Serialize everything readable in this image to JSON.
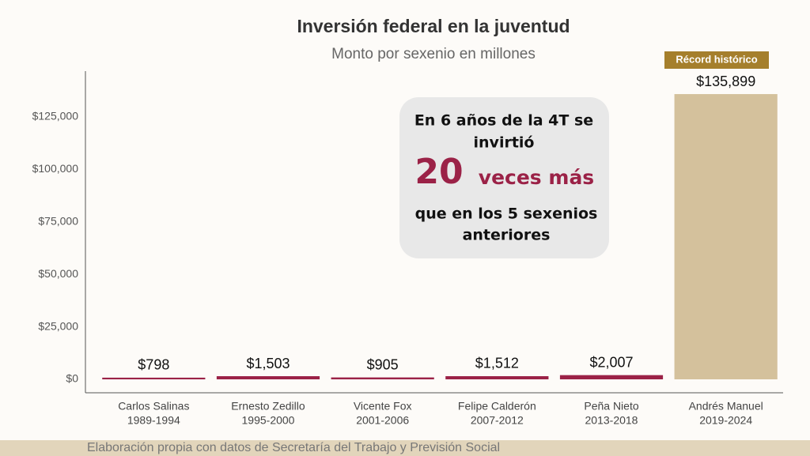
{
  "chart_data": {
    "type": "bar",
    "title": "Inversión federal en la juventud",
    "subtitle": "Monto por sexenio en millones",
    "categories": [
      [
        "Carlos Salinas",
        "1989-1994"
      ],
      [
        "Ernesto Zedillo",
        "1995-2000"
      ],
      [
        "Vicente Fox",
        "2001-2006"
      ],
      [
        "Felipe Calderón",
        "2007-2012"
      ],
      [
        "Peña Nieto",
        "2013-2018"
      ],
      [
        "Andrés Manuel",
        "2019-2024"
      ]
    ],
    "values": [
      798,
      1503,
      905,
      1512,
      2007,
      135899
    ],
    "value_labels": [
      "$798",
      "$1,503",
      "$905",
      "$1,512",
      "$2,007",
      "$135,899"
    ],
    "colors": [
      "#9b2247",
      "#9b2247",
      "#9b2247",
      "#9b2247",
      "#9b2247",
      "#d4c19c"
    ],
    "ylim": [
      0,
      145000
    ],
    "yticks": [
      {
        "value": 0,
        "label": "$0"
      },
      {
        "value": 25000,
        "label": "$25,000"
      },
      {
        "value": 50000,
        "label": "$50,000"
      },
      {
        "value": 75000,
        "label": "$75,000"
      },
      {
        "value": 100000,
        "label": "$100,000"
      },
      {
        "value": 125000,
        "label": "$125,000"
      }
    ],
    "badge": "Récord histórico",
    "callout": {
      "line1": "En 6 años de la 4T se",
      "line2": "invirtió",
      "number": "20",
      "emphasis": "veces más",
      "line3": "que en los 5 sexenios",
      "line4": "anteriores"
    },
    "source": "Elaboración propia con datos de Secretaría del Trabajo y Previsión Social"
  }
}
